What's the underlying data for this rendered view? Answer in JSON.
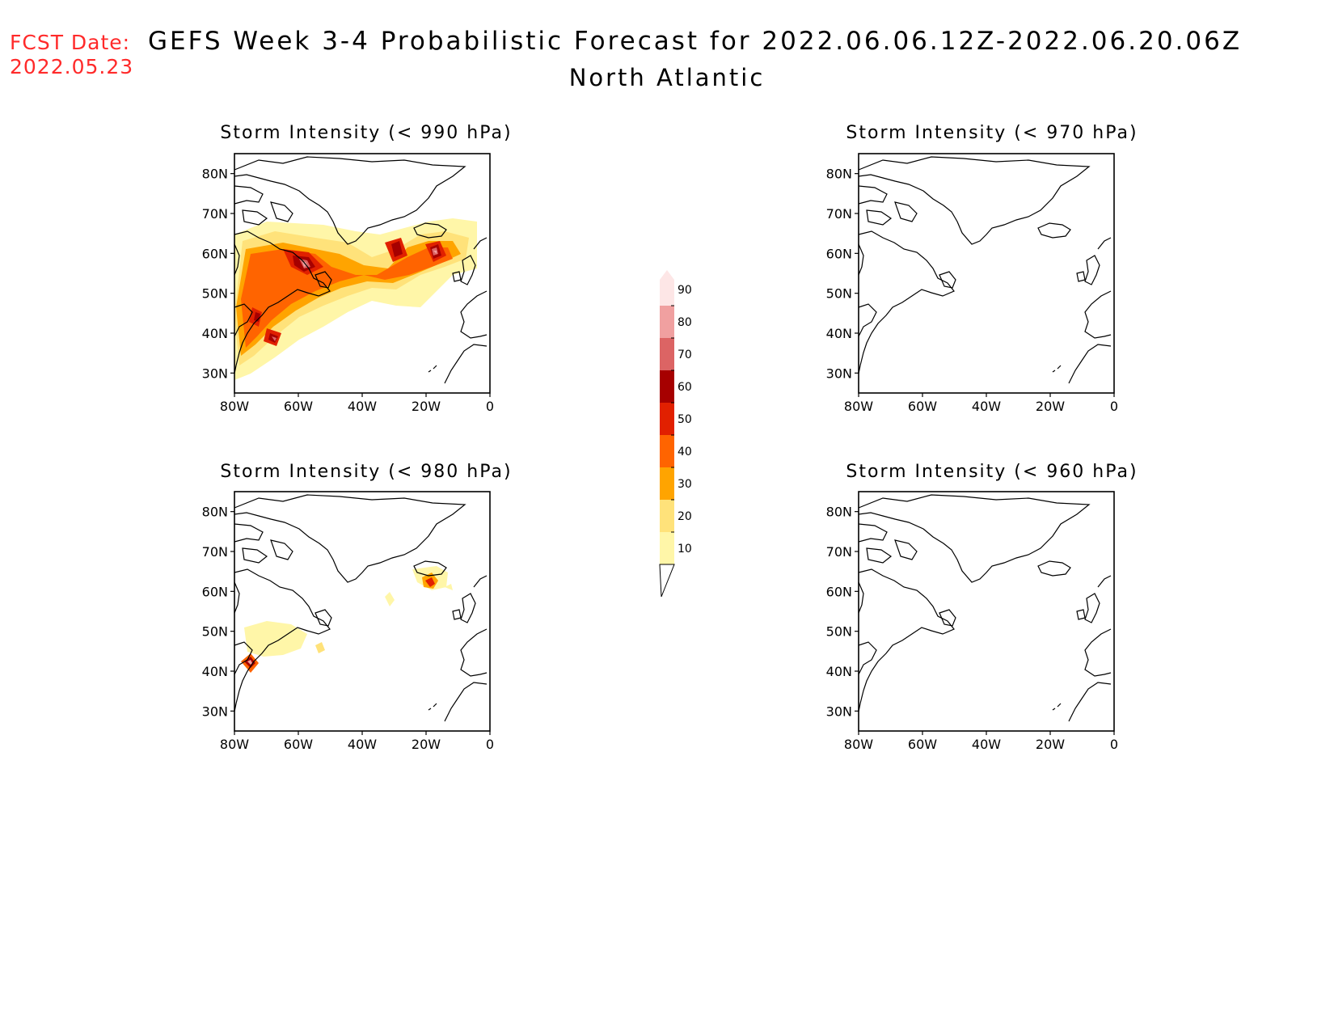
{
  "header": {
    "fcst_label": "FCST Date:",
    "fcst_date": "2022.05.23",
    "title": "GEFS Week 3-4 Probabilistic Forecast for 2022.06.06.12Z-2022.06.20.06Z",
    "subtitle": "North Atlantic"
  },
  "panels": [
    {
      "title": "Storm Intensity (< 990 hPa)",
      "threshold": "< 990 hPa"
    },
    {
      "title": "Storm Intensity (< 970 hPa)",
      "threshold": "< 970 hPa"
    },
    {
      "title": "Storm Intensity (< 980 hPa)",
      "threshold": "< 980 hPa"
    },
    {
      "title": "Storm Intensity (< 960 hPa)",
      "threshold": "< 960 hPa"
    }
  ],
  "axes": {
    "lat_ticks": [
      "80N",
      "70N",
      "60N",
      "50N",
      "40N",
      "30N"
    ],
    "lon_ticks": [
      "80W",
      "60W",
      "40W",
      "20W",
      "0"
    ],
    "lat_values": [
      80,
      70,
      60,
      50,
      40,
      30
    ],
    "lon_values": [
      -80,
      -60,
      -40,
      -20,
      0
    ],
    "lat_range": [
      25,
      85
    ],
    "lon_range": [
      -80,
      0
    ]
  },
  "colorbar": {
    "labels": [
      "10",
      "20",
      "30",
      "40",
      "50",
      "60",
      "70",
      "80",
      "90"
    ],
    "colors": [
      "#fff6a8",
      "#ffe27a",
      "#ffa400",
      "#ff6400",
      "#e12000",
      "#a60000",
      "#dc6464",
      "#f0a0a0",
      "#fde6e6"
    ]
  }
}
